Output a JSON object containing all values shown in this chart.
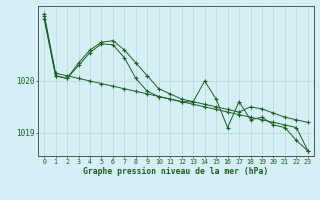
{
  "background_color": "#d6eef5",
  "grid_color": "#b8ddd8",
  "line_color": "#1a6020",
  "xlabel": "Graphe pression niveau de la mer (hPa)",
  "xlim": [
    -0.5,
    23.5
  ],
  "ylim": [
    1018.55,
    1021.45
  ],
  "yticks": [
    1019,
    1020
  ],
  "xticks": [
    0,
    1,
    2,
    3,
    4,
    5,
    6,
    7,
    8,
    9,
    10,
    11,
    12,
    13,
    14,
    15,
    16,
    17,
    18,
    19,
    20,
    21,
    22,
    23
  ],
  "s1": [
    1021.3,
    1020.15,
    1020.1,
    1020.05,
    1020.0,
    1019.95,
    1019.9,
    1019.85,
    1019.8,
    1019.75,
    1019.7,
    1019.65,
    1019.6,
    1019.55,
    1019.5,
    1019.45,
    1019.4,
    1019.35,
    1019.3,
    1019.25,
    1019.2,
    1019.15,
    1019.1,
    1018.65
  ],
  "s2": [
    1021.25,
    1020.1,
    1020.05,
    1020.35,
    1020.6,
    1020.75,
    1020.78,
    1020.6,
    1020.35,
    1020.1,
    1019.85,
    1019.75,
    1019.65,
    1019.6,
    1019.55,
    1019.5,
    1019.45,
    1019.4,
    1019.5,
    1019.46,
    1019.38,
    1019.3,
    1019.25,
    1019.2
  ],
  "s3": [
    1021.2,
    1020.1,
    1020.05,
    1020.3,
    1020.55,
    1020.72,
    1020.7,
    1020.45,
    1020.05,
    1019.8,
    1019.7,
    1019.65,
    1019.6,
    1019.6,
    1020.0,
    1019.65,
    1019.1,
    1019.6,
    1019.25,
    1019.3,
    1019.15,
    1019.1,
    1018.85,
    1018.65
  ]
}
